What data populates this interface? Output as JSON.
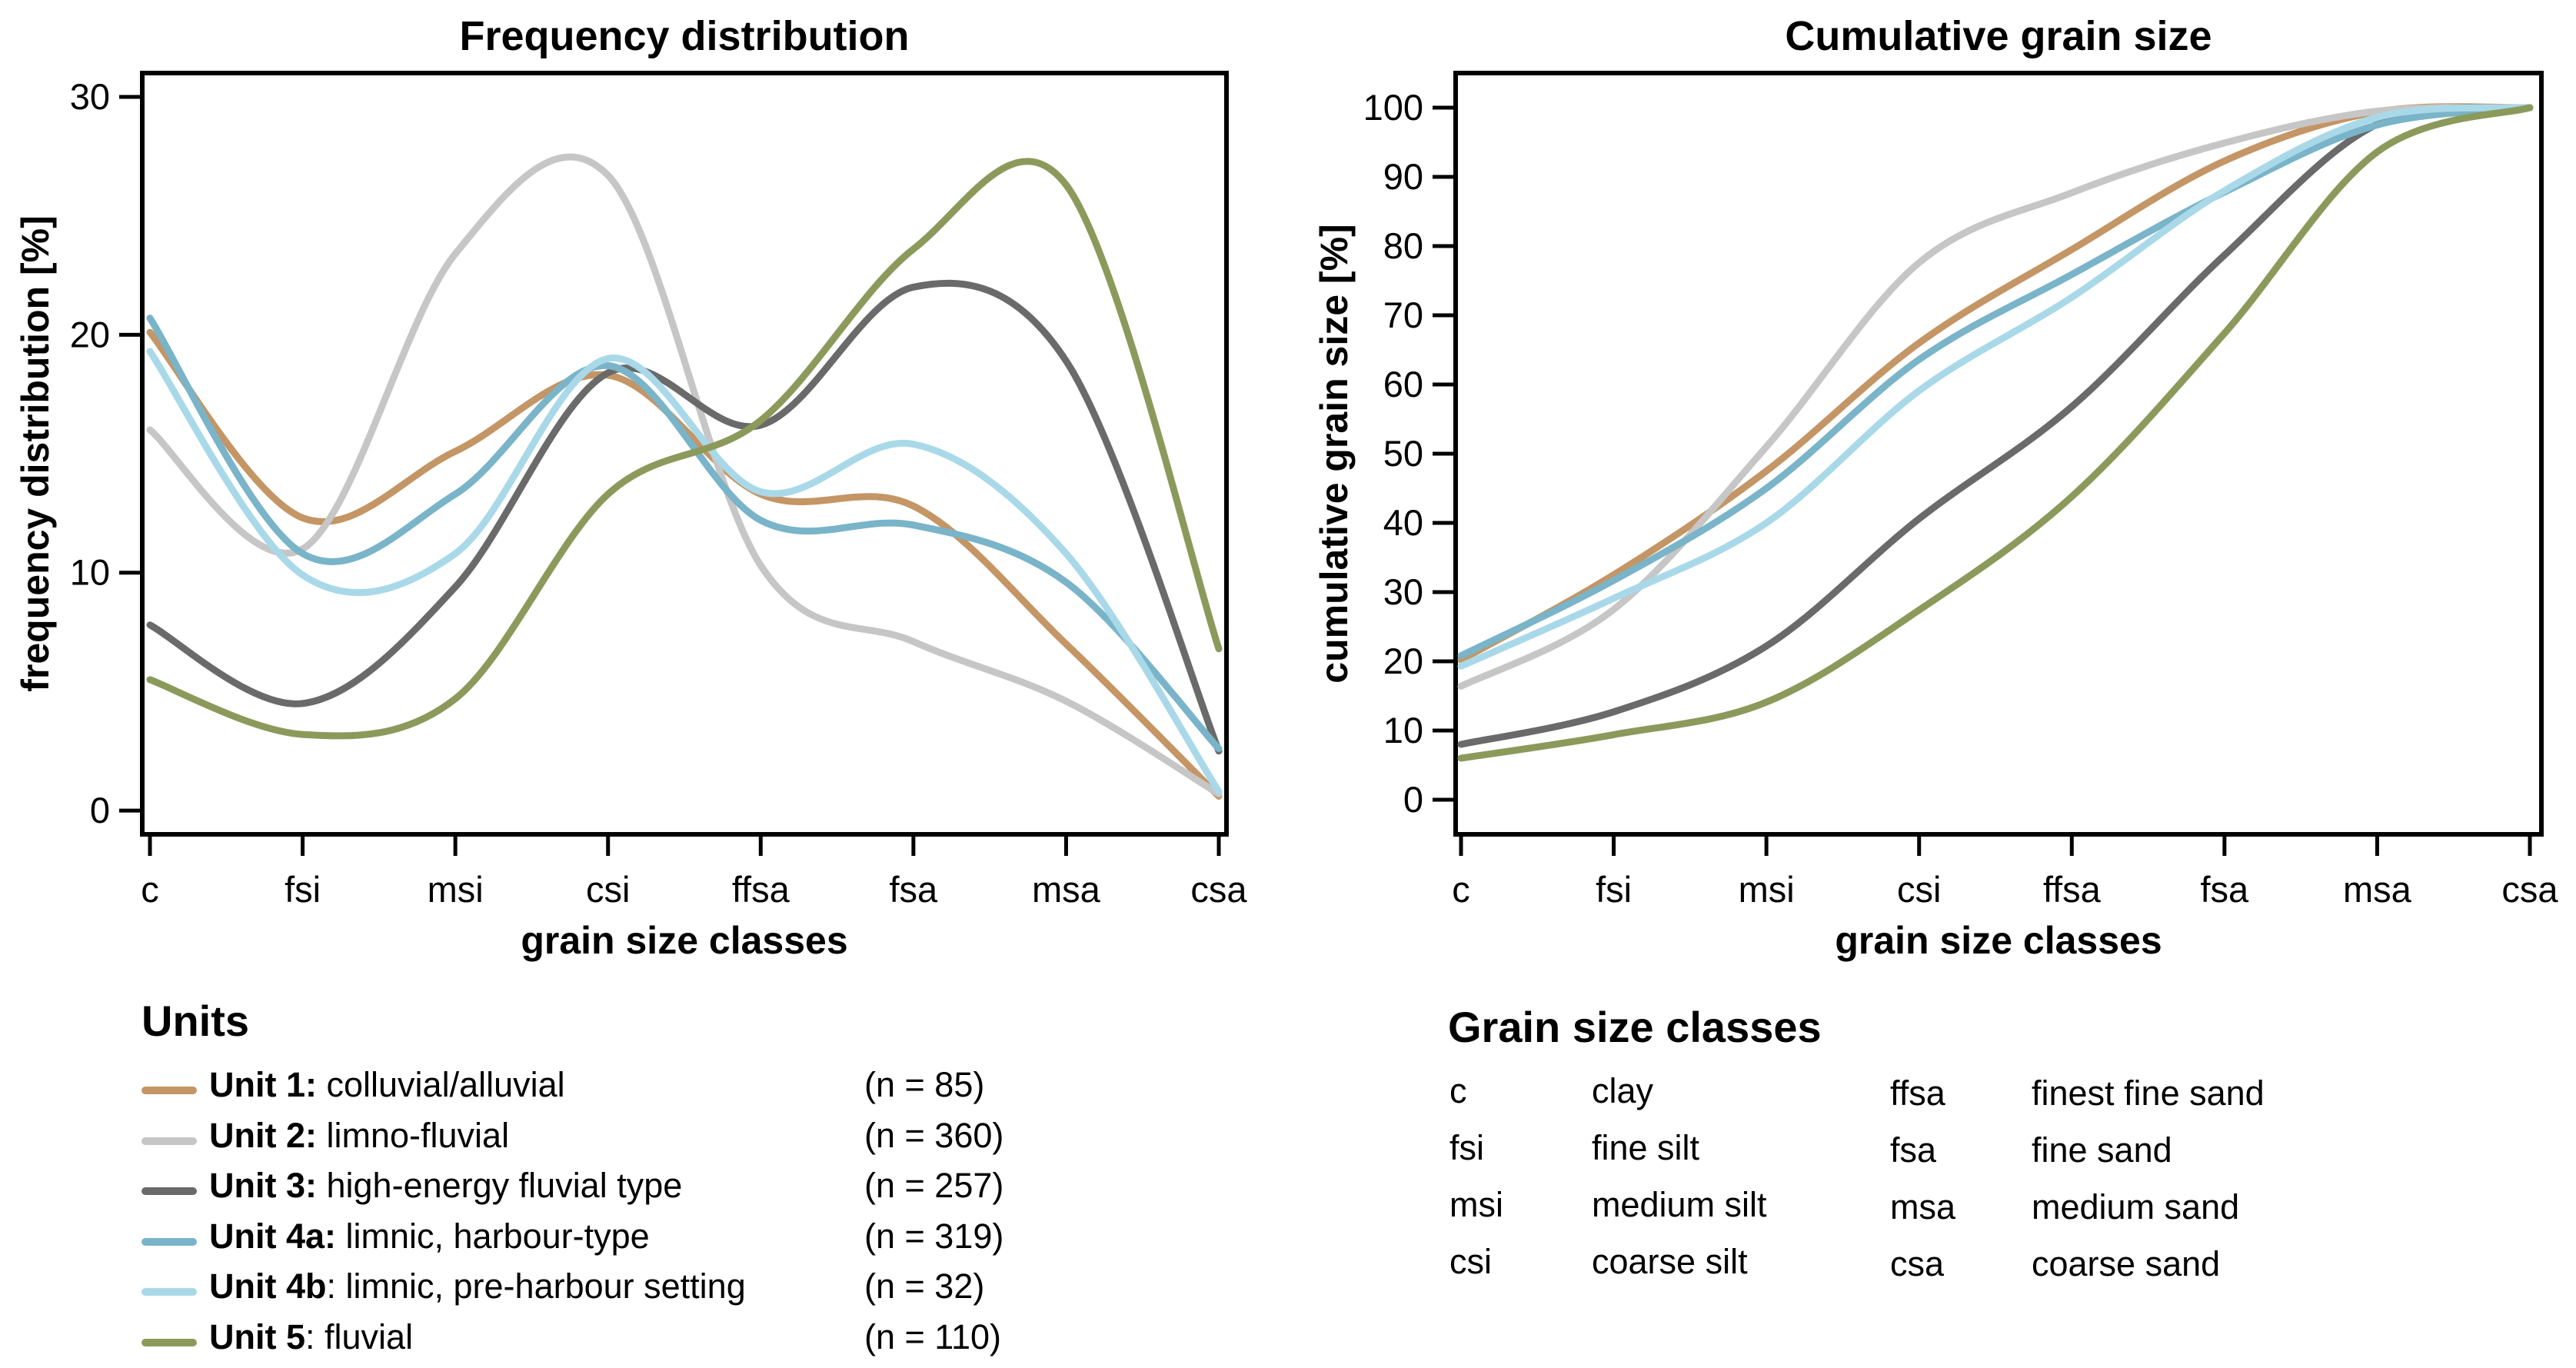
{
  "chart_data": [
    {
      "type": "line",
      "title": "Frequency distribution",
      "xlabel": "grain size classes",
      "ylabel": "frequency distribution [%]",
      "categories": [
        "c",
        "fsi",
        "msi",
        "csi",
        "ffsa",
        "fsa",
        "msa",
        "csa"
      ],
      "ylim": [
        -1,
        31
      ],
      "yticks": [
        0,
        10,
        20,
        30
      ],
      "grid": false,
      "series": [
        {
          "name": "Unit 1",
          "color": "#c49565",
          "values": [
            20.1,
            12.3,
            15.1,
            18.3,
            13.3,
            12.8,
            7.0,
            0.6
          ]
        },
        {
          "name": "Unit 2",
          "color": "#c6c6c6",
          "values": [
            16.0,
            11.0,
            23.4,
            26.7,
            10.3,
            7.1,
            4.6,
            0.7
          ]
        },
        {
          "name": "Unit 3",
          "color": "#6a6a6a",
          "values": [
            7.8,
            4.5,
            9.4,
            18.4,
            16.2,
            22.0,
            18.9,
            2.5
          ]
        },
        {
          "name": "Unit 4a",
          "color": "#79b4c9",
          "values": [
            20.7,
            10.8,
            13.3,
            18.7,
            12.2,
            12.0,
            9.6,
            2.6
          ]
        },
        {
          "name": "Unit 4b",
          "color": "#a9d9e9",
          "values": [
            19.3,
            9.9,
            10.8,
            19.0,
            13.4,
            15.4,
            10.8,
            0.8
          ]
        },
        {
          "name": "Unit 5",
          "color": "#8b9a5b",
          "values": [
            5.5,
            3.2,
            4.7,
            13.3,
            16.4,
            23.6,
            26.3,
            6.8
          ]
        }
      ]
    },
    {
      "type": "line",
      "title": "Cumulative grain size",
      "xlabel": "grain size classes",
      "ylabel": "cumulative grain size [%]",
      "categories": [
        "c",
        "fsi",
        "msi",
        "csi",
        "ffsa",
        "fsa",
        "msa",
        "csa"
      ],
      "ylim": [
        -5,
        105
      ],
      "yticks": [
        0,
        10,
        20,
        30,
        40,
        50,
        60,
        70,
        80,
        90,
        100
      ],
      "grid": false,
      "series": [
        {
          "name": "Unit 1",
          "color": "#c49565",
          "values": [
            20.2,
            32.5,
            47.5,
            66.0,
            79.5,
            92.3,
            99.4,
            100.0
          ]
        },
        {
          "name": "Unit 2",
          "color": "#c6c6c6",
          "values": [
            16.4,
            27.5,
            51.0,
            77.6,
            87.7,
            94.9,
            99.5,
            100.0
          ]
        },
        {
          "name": "Unit 3",
          "color": "#6a6a6a",
          "values": [
            8.0,
            12.7,
            22.2,
            40.6,
            56.8,
            78.7,
            97.6,
            100.0
          ]
        },
        {
          "name": "Unit 4a",
          "color": "#79b4c9",
          "values": [
            20.8,
            31.7,
            45.0,
            63.6,
            75.9,
            87.8,
            97.5,
            100.0
          ]
        },
        {
          "name": "Unit 4b",
          "color": "#a9d9e9",
          "values": [
            19.3,
            29.1,
            40.0,
            59.1,
            72.6,
            88.0,
            98.6,
            100.0
          ]
        },
        {
          "name": "Unit 5",
          "color": "#8b9a5b",
          "values": [
            6.0,
            9.4,
            14.1,
            27.4,
            43.8,
            67.4,
            93.6,
            100.0
          ]
        }
      ]
    }
  ],
  "units_legend": {
    "title": "Units",
    "items": [
      {
        "bold": "Unit 1:",
        "text": " colluvial/alluvial",
        "count": "(n = 85)",
        "color": "#c49565"
      },
      {
        "bold": "Unit 2:",
        "text": " limno-fluvial",
        "count": "(n = 360)",
        "color": "#c6c6c6"
      },
      {
        "bold": "Unit 3:",
        "text": " high-energy fluvial type",
        "count": "(n = 257)",
        "color": "#6a6a6a"
      },
      {
        "bold": "Unit 4a:",
        "text": " limnic, harbour-type",
        "count": "(n = 319)",
        "color": "#79b4c9"
      },
      {
        "bold": "Unit 4b",
        "text": ": limnic, pre-harbour setting",
        "count": "(n = 32)",
        "color": "#a9d9e9"
      },
      {
        "bold": "Unit 5",
        "text": ": fluvial",
        "count": "(n = 110)",
        "color": "#8b9a5b"
      }
    ]
  },
  "grain_legend": {
    "title": "Grain size classes",
    "items": [
      {
        "abbr": "c",
        "name": "clay"
      },
      {
        "abbr": "fsi",
        "name": "fine silt"
      },
      {
        "abbr": "msi",
        "name": "medium silt"
      },
      {
        "abbr": "csi",
        "name": "coarse silt"
      },
      {
        "abbr": "ffsa",
        "name": "finest fine sand"
      },
      {
        "abbr": "fsa",
        "name": "fine sand"
      },
      {
        "abbr": "msa",
        "name": "medium sand"
      },
      {
        "abbr": "csa",
        "name": "coarse sand"
      }
    ]
  }
}
